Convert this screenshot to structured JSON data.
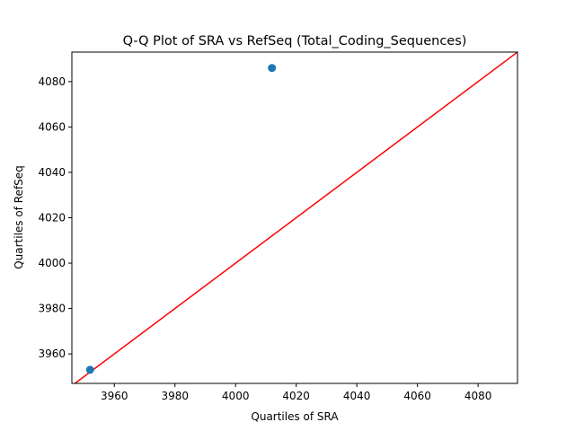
{
  "chart_data": {
    "type": "scatter",
    "title": "Q-Q Plot of SRA vs RefSeq (Total_Coding_Sequences)",
    "xlabel": "Quartiles of SRA",
    "ylabel": "Quartiles of RefSeq",
    "xlim": [
      3946,
      4093
    ],
    "ylim": [
      3947,
      4093
    ],
    "x_ticks": [
      3960,
      3980,
      4000,
      4020,
      4040,
      4060,
      4080
    ],
    "y_ticks": [
      3960,
      3980,
      4000,
      4020,
      4040,
      4060,
      4080
    ],
    "grid": false,
    "points": [
      {
        "x": 3952,
        "y": 3953
      },
      {
        "x": 4012,
        "y": 4086
      }
    ],
    "reference_line": {
      "type": "y=x",
      "color": "#ff0000"
    },
    "colors": {
      "points": "#1f77b4",
      "line": "#ff0000",
      "axes": "#000000"
    }
  }
}
